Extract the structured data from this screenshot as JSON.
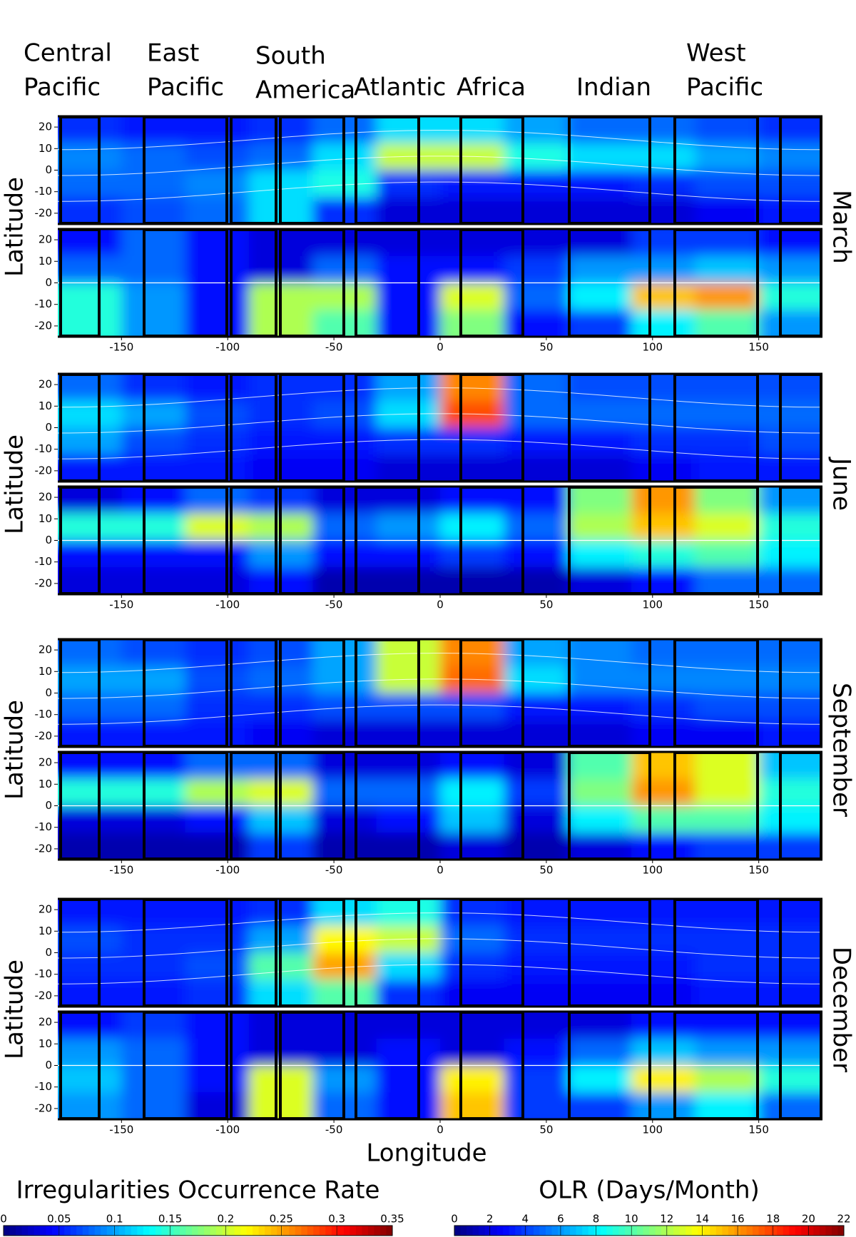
{
  "region_labels": [
    [
      "Central",
      "Pacific"
    ],
    [
      "East",
      "Pacific"
    ],
    [
      "South",
      "America"
    ],
    [
      "Atlantic"
    ],
    [
      "Africa"
    ],
    [
      "Indian"
    ],
    [
      "West",
      "Pacific"
    ]
  ],
  "months": [
    {
      "label": "March",
      "ylabel": "Latitude"
    },
    {
      "label": "June",
      "ylabel": "Latitude"
    },
    {
      "label": "September",
      "ylabel": "Latitude"
    },
    {
      "label": "December",
      "ylabel": "Latitude"
    }
  ],
  "xlabel": "Longitude",
  "colorbars": [
    {
      "title": "Irregularities Occurrence Rate",
      "lim": [
        0,
        0.35
      ],
      "ticks": [
        0,
        0.05,
        0.1,
        0.15,
        0.2,
        0.25,
        0.3,
        0.35
      ]
    },
    {
      "title": "OLR (Days/Month)",
      "lim": [
        0,
        22
      ],
      "ticks": [
        0,
        2,
        4,
        6,
        8,
        10,
        12,
        14,
        16,
        18,
        20,
        22
      ]
    }
  ],
  "chart_data": [
    {
      "type": "heatmap",
      "colorbar": 0,
      "x": [
        -165,
        -135,
        -105,
        -75,
        -45,
        -15,
        15,
        45,
        75,
        105,
        135,
        165
      ],
      "y": [
        18.75,
        6.25,
        -6.25,
        -18.75
      ],
      "xlim": [
        -180,
        180
      ],
      "ylim": [
        -25,
        25
      ],
      "yticks": [
        -20,
        -10,
        0,
        10,
        20
      ],
      "z": [
        [
          0.06,
          0.05,
          0.05,
          0.06,
          0.08,
          0.12,
          0.12,
          0.1,
          0.08,
          0.08,
          0.07,
          0.06
        ],
        [
          0.09,
          0.08,
          0.07,
          0.08,
          0.12,
          0.2,
          0.2,
          0.14,
          0.12,
          0.12,
          0.1,
          0.09
        ],
        [
          0.08,
          0.08,
          0.09,
          0.12,
          0.14,
          0.06,
          0.05,
          0.05,
          0.05,
          0.06,
          0.07,
          0.07
        ],
        [
          0.06,
          0.07,
          0.08,
          0.12,
          0.06,
          0.03,
          0.03,
          0.03,
          0.03,
          0.03,
          0.04,
          0.05
        ]
      ]
    },
    {
      "type": "heatmap",
      "colorbar": 1,
      "x": [
        -165,
        -135,
        -105,
        -75,
        -45,
        -15,
        15,
        45,
        75,
        105,
        135,
        165
      ],
      "y": [
        18.75,
        6.25,
        -6.25,
        -18.75
      ],
      "xlim": [
        -180,
        180
      ],
      "ylim": [
        -25,
        25
      ],
      "yticks": [
        -20,
        -10,
        0,
        10,
        20
      ],
      "xticks": [
        -150,
        -100,
        -50,
        0,
        50,
        100,
        150
      ],
      "z": [
        [
          3,
          5,
          3,
          2,
          2,
          2,
          2,
          2,
          2,
          4,
          4,
          3
        ],
        [
          5,
          5,
          3,
          2,
          5,
          3,
          3,
          4,
          6,
          6,
          7,
          6
        ],
        [
          9,
          6,
          3,
          12,
          12,
          3,
          13,
          5,
          8,
          15,
          16,
          9
        ],
        [
          9,
          6,
          3,
          12,
          10,
          3,
          11,
          3,
          4,
          8,
          10,
          6
        ]
      ]
    },
    {
      "type": "heatmap",
      "colorbar": 0,
      "x": [
        -165,
        -135,
        -105,
        -75,
        -45,
        -15,
        15,
        45,
        75,
        105,
        135,
        165
      ],
      "y": [
        18.75,
        6.25,
        -6.25,
        -18.75
      ],
      "xlim": [
        -180,
        180
      ],
      "ylim": [
        -25,
        25
      ],
      "yticks": [
        -20,
        -10,
        0,
        10,
        20
      ],
      "z": [
        [
          0.08,
          0.06,
          0.05,
          0.06,
          0.06,
          0.1,
          0.26,
          0.08,
          0.07,
          0.07,
          0.07,
          0.07
        ],
        [
          0.12,
          0.1,
          0.07,
          0.06,
          0.07,
          0.12,
          0.28,
          0.08,
          0.08,
          0.08,
          0.08,
          0.08
        ],
        [
          0.1,
          0.07,
          0.06,
          0.05,
          0.05,
          0.06,
          0.06,
          0.05,
          0.05,
          0.06,
          0.06,
          0.07
        ],
        [
          0.05,
          0.05,
          0.05,
          0.04,
          0.04,
          0.03,
          0.03,
          0.03,
          0.03,
          0.04,
          0.05,
          0.05
        ]
      ]
    },
    {
      "type": "heatmap",
      "colorbar": 1,
      "x": [
        -165,
        -135,
        -105,
        -75,
        -45,
        -15,
        15,
        45,
        75,
        105,
        135,
        165
      ],
      "y": [
        18.75,
        6.25,
        -6.25,
        -18.75
      ],
      "xlim": [
        -180,
        180
      ],
      "ylim": [
        -25,
        25
      ],
      "yticks": [
        -20,
        -10,
        0,
        10,
        20
      ],
      "xticks": [
        -150,
        -100,
        -50,
        0,
        50,
        100,
        150
      ],
      "z": [
        [
          2,
          3,
          5,
          4,
          2,
          2,
          3,
          3,
          11,
          16,
          11,
          6
        ],
        [
          9,
          9,
          13,
          12,
          5,
          6,
          8,
          5,
          12,
          15,
          13,
          9
        ],
        [
          3,
          3,
          3,
          6,
          3,
          3,
          4,
          3,
          8,
          9,
          10,
          8
        ],
        [
          2,
          2,
          2,
          3,
          1,
          1,
          1,
          1,
          2,
          3,
          5,
          5
        ]
      ]
    },
    {
      "type": "heatmap",
      "colorbar": 0,
      "x": [
        -165,
        -135,
        -105,
        -75,
        -45,
        -15,
        15,
        45,
        75,
        105,
        135,
        165
      ],
      "y": [
        18.75,
        6.25,
        -6.25,
        -18.75
      ],
      "xlim": [
        -180,
        180
      ],
      "ylim": [
        -25,
        25
      ],
      "yticks": [
        -20,
        -10,
        0,
        10,
        20
      ],
      "z": [
        [
          0.08,
          0.07,
          0.06,
          0.07,
          0.1,
          0.2,
          0.26,
          0.1,
          0.09,
          0.08,
          0.08,
          0.08
        ],
        [
          0.1,
          0.1,
          0.07,
          0.08,
          0.1,
          0.2,
          0.27,
          0.12,
          0.09,
          0.09,
          0.09,
          0.09
        ],
        [
          0.08,
          0.08,
          0.06,
          0.06,
          0.07,
          0.07,
          0.07,
          0.05,
          0.05,
          0.06,
          0.07,
          0.07
        ],
        [
          0.05,
          0.05,
          0.05,
          0.04,
          0.03,
          0.03,
          0.03,
          0.03,
          0.03,
          0.04,
          0.04,
          0.05
        ]
      ]
    },
    {
      "type": "heatmap",
      "colorbar": 1,
      "x": [
        -165,
        -135,
        -105,
        -75,
        -45,
        -15,
        15,
        45,
        75,
        105,
        135,
        165
      ],
      "y": [
        18.75,
        6.25,
        -6.25,
        -18.75
      ],
      "xlim": [
        -180,
        180
      ],
      "ylim": [
        -25,
        25
      ],
      "yticks": [
        -20,
        -10,
        0,
        10,
        20
      ],
      "xticks": [
        -150,
        -100,
        -50,
        0,
        50,
        100,
        150
      ],
      "z": [
        [
          3,
          3,
          5,
          5,
          2,
          2,
          3,
          2,
          10,
          15,
          13,
          7
        ],
        [
          9,
          9,
          12,
          13,
          5,
          5,
          8,
          4,
          11,
          16,
          13,
          9
        ],
        [
          2,
          2,
          3,
          7,
          2,
          3,
          7,
          2,
          8,
          10,
          10,
          8
        ],
        [
          1,
          1,
          1,
          4,
          1,
          1,
          2,
          1,
          2,
          3,
          4,
          4
        ]
      ]
    },
    {
      "type": "heatmap",
      "colorbar": 0,
      "x": [
        -165,
        -135,
        -105,
        -75,
        -45,
        -15,
        15,
        45,
        75,
        105,
        135,
        165
      ],
      "y": [
        18.75,
        6.25,
        -6.25,
        -18.75
      ],
      "xlim": [
        -180,
        180
      ],
      "ylim": [
        -25,
        25
      ],
      "yticks": [
        -20,
        -10,
        0,
        10,
        20
      ],
      "z": [
        [
          0.05,
          0.05,
          0.05,
          0.06,
          0.12,
          0.14,
          0.06,
          0.05,
          0.05,
          0.05,
          0.05,
          0.05
        ],
        [
          0.07,
          0.06,
          0.06,
          0.1,
          0.22,
          0.2,
          0.08,
          0.06,
          0.06,
          0.06,
          0.06,
          0.06
        ],
        [
          0.06,
          0.06,
          0.07,
          0.16,
          0.25,
          0.12,
          0.06,
          0.05,
          0.05,
          0.05,
          0.06,
          0.06
        ],
        [
          0.05,
          0.05,
          0.06,
          0.12,
          0.16,
          0.06,
          0.04,
          0.04,
          0.04,
          0.04,
          0.05,
          0.05
        ]
      ]
    },
    {
      "type": "heatmap",
      "colorbar": 1,
      "x": [
        -165,
        -135,
        -105,
        -75,
        -45,
        -15,
        15,
        45,
        75,
        105,
        135,
        165
      ],
      "y": [
        18.75,
        6.25,
        -6.25,
        -18.75
      ],
      "xlim": [
        -180,
        180
      ],
      "ylim": [
        -25,
        25
      ],
      "yticks": [
        -20,
        -10,
        0,
        10,
        20
      ],
      "xticks": [
        -150,
        -100,
        -50,
        0,
        50,
        100,
        150
      ],
      "z": [
        [
          3,
          4,
          3,
          2,
          2,
          2,
          2,
          2,
          2,
          3,
          3,
          3
        ],
        [
          6,
          5,
          3,
          2,
          2,
          3,
          2,
          3,
          5,
          7,
          6,
          6
        ],
        [
          7,
          5,
          3,
          13,
          6,
          3,
          14,
          4,
          8,
          14,
          12,
          9
        ],
        [
          6,
          5,
          2,
          13,
          5,
          3,
          15,
          4,
          4,
          6,
          8,
          5
        ]
      ]
    }
  ]
}
